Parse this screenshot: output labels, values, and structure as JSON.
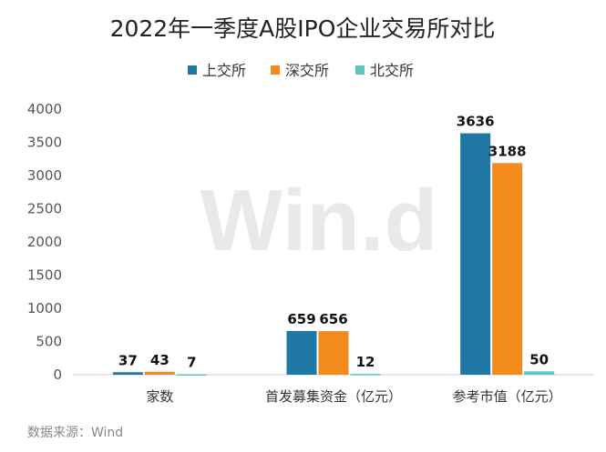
{
  "chart_data": {
    "type": "bar",
    "title": "2022年一季度A股IPO企业交易所对比",
    "categories": [
      "家数",
      "首发募集资金（亿元）",
      "参考市值（亿元）"
    ],
    "series": [
      {
        "name": "上交所",
        "color": "#1f77a4",
        "values": [
          37,
          659,
          3636
        ]
      },
      {
        "name": "深交所",
        "color": "#f28a1c",
        "values": [
          43,
          656,
          3188
        ]
      },
      {
        "name": "北交所",
        "color": "#5fc4c0",
        "values": [
          7,
          12,
          50
        ]
      }
    ],
    "ylim": [
      0,
      4000
    ],
    "yticks": [
      0,
      500,
      1000,
      1500,
      2000,
      2500,
      3000,
      3500,
      4000
    ],
    "xlabel": "",
    "ylabel": "",
    "legend": "top-center",
    "source": "数据来源：Wind",
    "watermark": "Win.d"
  }
}
